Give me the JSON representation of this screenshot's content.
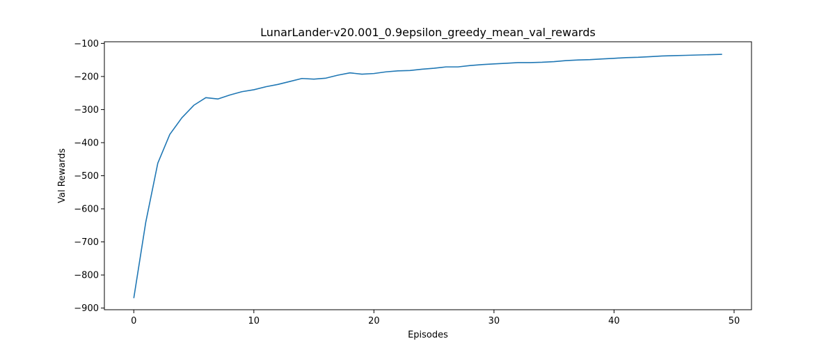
{
  "chart_data": {
    "type": "line",
    "title": "LunarLander-v20.001_0.9epsilon_greedy_mean_val_rewards",
    "xlabel": "Episodes",
    "ylabel": "Val Rewards",
    "xlim": [
      -2.45,
      51.45
    ],
    "ylim": [
      -905,
      -95
    ],
    "xticks": [
      0,
      10,
      20,
      30,
      40,
      50
    ],
    "yticks": [
      -900,
      -800,
      -700,
      -600,
      -500,
      -400,
      -300,
      -200,
      -100
    ],
    "grid": false,
    "legend": "none",
    "line_color": "#1f77b4",
    "series": [
      {
        "x": [
          0,
          1,
          2,
          3,
          4,
          5,
          6,
          7,
          8,
          9,
          10,
          11,
          12,
          13,
          14,
          15,
          16,
          17,
          18,
          19,
          20,
          21,
          22,
          23,
          24,
          25,
          26,
          27,
          28,
          29,
          30,
          31,
          32,
          33,
          34,
          35,
          36,
          37,
          38,
          39,
          40,
          41,
          42,
          43,
          44,
          45,
          46,
          47,
          48,
          49
        ],
        "values": [
          -870,
          -640,
          -462,
          -375,
          -325,
          -287,
          -264,
          -268,
          -256,
          -246,
          -240,
          -231,
          -224,
          -215,
          -206,
          -208,
          -205,
          -196,
          -189,
          -193,
          -191,
          -186,
          -183,
          -182,
          -178,
          -175,
          -171,
          -171,
          -167,
          -164,
          -162,
          -160,
          -158,
          -158,
          -157,
          -155,
          -152,
          -150,
          -149,
          -147,
          -145,
          -143,
          -142,
          -140,
          -138,
          -137,
          -136,
          -135,
          -134,
          -133
        ]
      }
    ]
  }
}
